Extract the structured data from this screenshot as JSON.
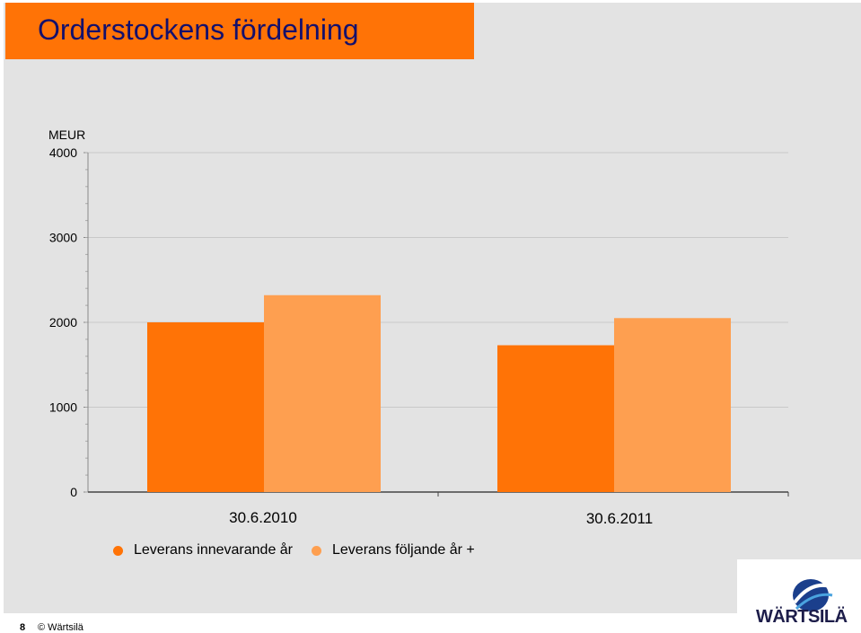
{
  "slide": {
    "title": "Orderstockens fördelning",
    "page_number": "8",
    "copyright": "© Wärtsilä",
    "logo_text": "WÄRTSILÄ"
  },
  "colors": {
    "title_bar": "#ff7306",
    "title_text": "#14106c",
    "series_1": "#ff7306",
    "series_2": "#fe9f50",
    "background": "#e3e3e3"
  },
  "chart_data": {
    "type": "bar",
    "ylabel": "MEUR",
    "ylim": [
      0,
      4000
    ],
    "yticks": [
      0,
      1000,
      2000,
      3000,
      4000
    ],
    "categories": [
      "30.6.2010",
      "30.6.2011"
    ],
    "series": [
      {
        "name": "Leverans innevarande år",
        "values": [
          2000,
          1730
        ]
      },
      {
        "name": "Leverans följande år +",
        "values": [
          2320,
          2050
        ]
      }
    ],
    "grid": true,
    "legend_position": "bottom"
  }
}
